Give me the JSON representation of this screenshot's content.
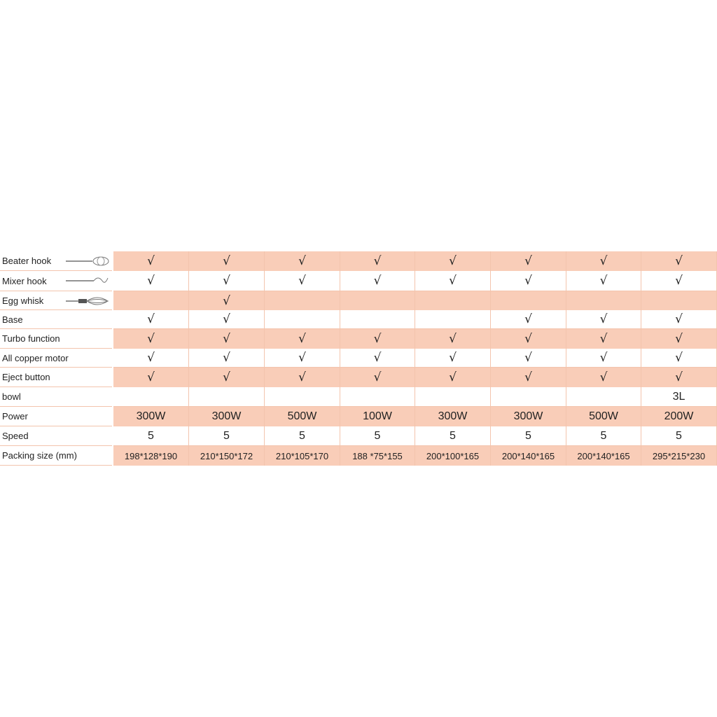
{
  "table": {
    "rows": [
      {
        "label": "Beater hook",
        "cells": [
          "√",
          "√",
          "√",
          "√",
          "√",
          "√",
          "√",
          "√"
        ]
      },
      {
        "label": "Mixer hook",
        "cells": [
          "√",
          "√",
          "√",
          "√",
          "√",
          "√",
          "√",
          "√"
        ]
      },
      {
        "label": "Egg whisk",
        "cells": [
          null,
          "√",
          null,
          null,
          null,
          null,
          null,
          null
        ]
      },
      {
        "label": "Base",
        "cells": [
          "√",
          "√",
          null,
          null,
          null,
          "√",
          "√",
          "√"
        ]
      },
      {
        "label": "Turbo function",
        "cells": [
          "√",
          "√",
          "√",
          "√",
          "√",
          "√",
          "√",
          "√"
        ]
      },
      {
        "label": "All copper motor",
        "cells": [
          "√",
          "√",
          "√",
          "√",
          "√",
          "√",
          "√",
          "√"
        ]
      },
      {
        "label": "Eject button",
        "cells": [
          "√",
          "√",
          "√",
          "√",
          "√",
          "√",
          "√",
          "√"
        ]
      },
      {
        "label": "bowl",
        "cells": [
          null,
          null,
          null,
          null,
          null,
          null,
          null,
          "3L"
        ]
      },
      {
        "label": "Power",
        "cells": [
          "300W",
          "300W",
          "500W",
          "100W",
          "300W",
          "300W",
          "500W",
          "200W"
        ]
      },
      {
        "label": "Speed",
        "cells": [
          "5",
          "5",
          "5",
          "5",
          "5",
          "5",
          "5",
          "5"
        ]
      },
      {
        "label": "Packing size (mm)",
        "cells": [
          "198*128*190",
          "210*150*172",
          "210*105*170",
          "188 *75*155",
          "200*100*165",
          "200*140*165",
          "200*140*165",
          "295*215*230"
        ]
      }
    ]
  }
}
